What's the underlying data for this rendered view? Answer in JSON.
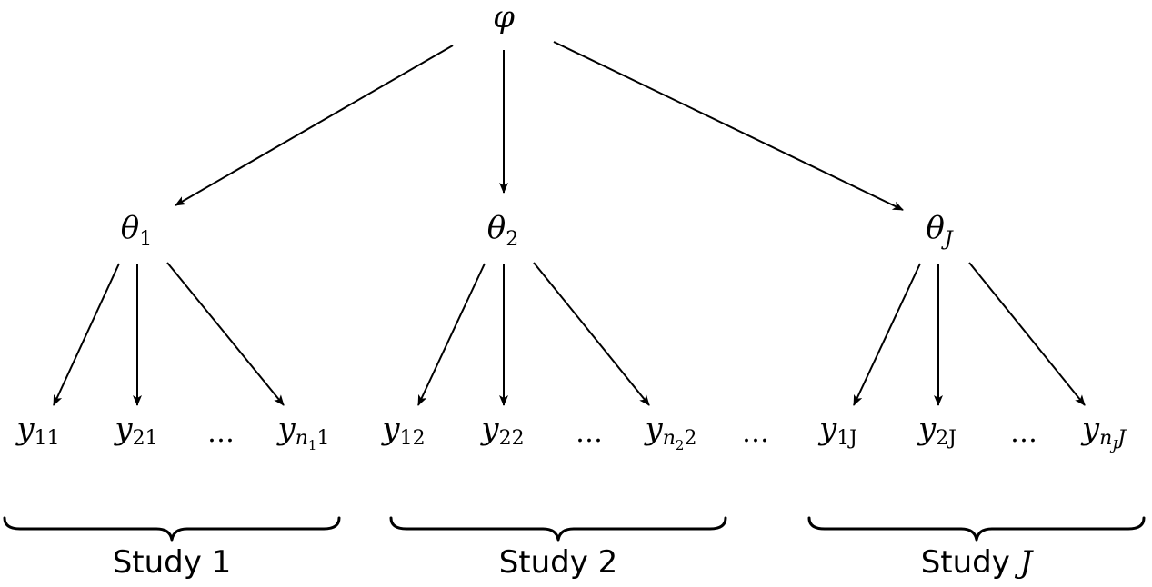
{
  "root": {
    "symbol": "φ"
  },
  "params": [
    {
      "symbol": "θ",
      "sub": "1",
      "sub_italic": false
    },
    {
      "symbol": "θ",
      "sub": "2",
      "sub_italic": false
    },
    {
      "symbol": "θ",
      "sub": "J",
      "sub_italic": true
    }
  ],
  "observations": [
    {
      "symbol": "y",
      "sub": "11"
    },
    {
      "symbol": "y",
      "sub": "21"
    },
    {
      "symbol": "…"
    },
    {
      "symbol": "y",
      "sub": "n",
      "subsub": "1",
      "tail": "1"
    },
    {
      "symbol": "y",
      "sub": "12"
    },
    {
      "symbol": "y",
      "sub": "22"
    },
    {
      "symbol": "…"
    },
    {
      "symbol": "y",
      "sub": "n",
      "subsub": "2",
      "tail": "2"
    },
    {
      "symbol": "…"
    },
    {
      "symbol": "y",
      "sub": "1J"
    },
    {
      "symbol": "y",
      "sub": "2J"
    },
    {
      "symbol": "…"
    },
    {
      "symbol": "y",
      "sub": "n",
      "subsub": "J",
      "tail": "J"
    }
  ],
  "studies": [
    {
      "prefix": "Study ",
      "index": "1",
      "index_italic": false
    },
    {
      "prefix": "Study ",
      "index": "2",
      "index_italic": false
    },
    {
      "prefix": "Study ",
      "index": "J",
      "index_italic": true
    }
  ]
}
